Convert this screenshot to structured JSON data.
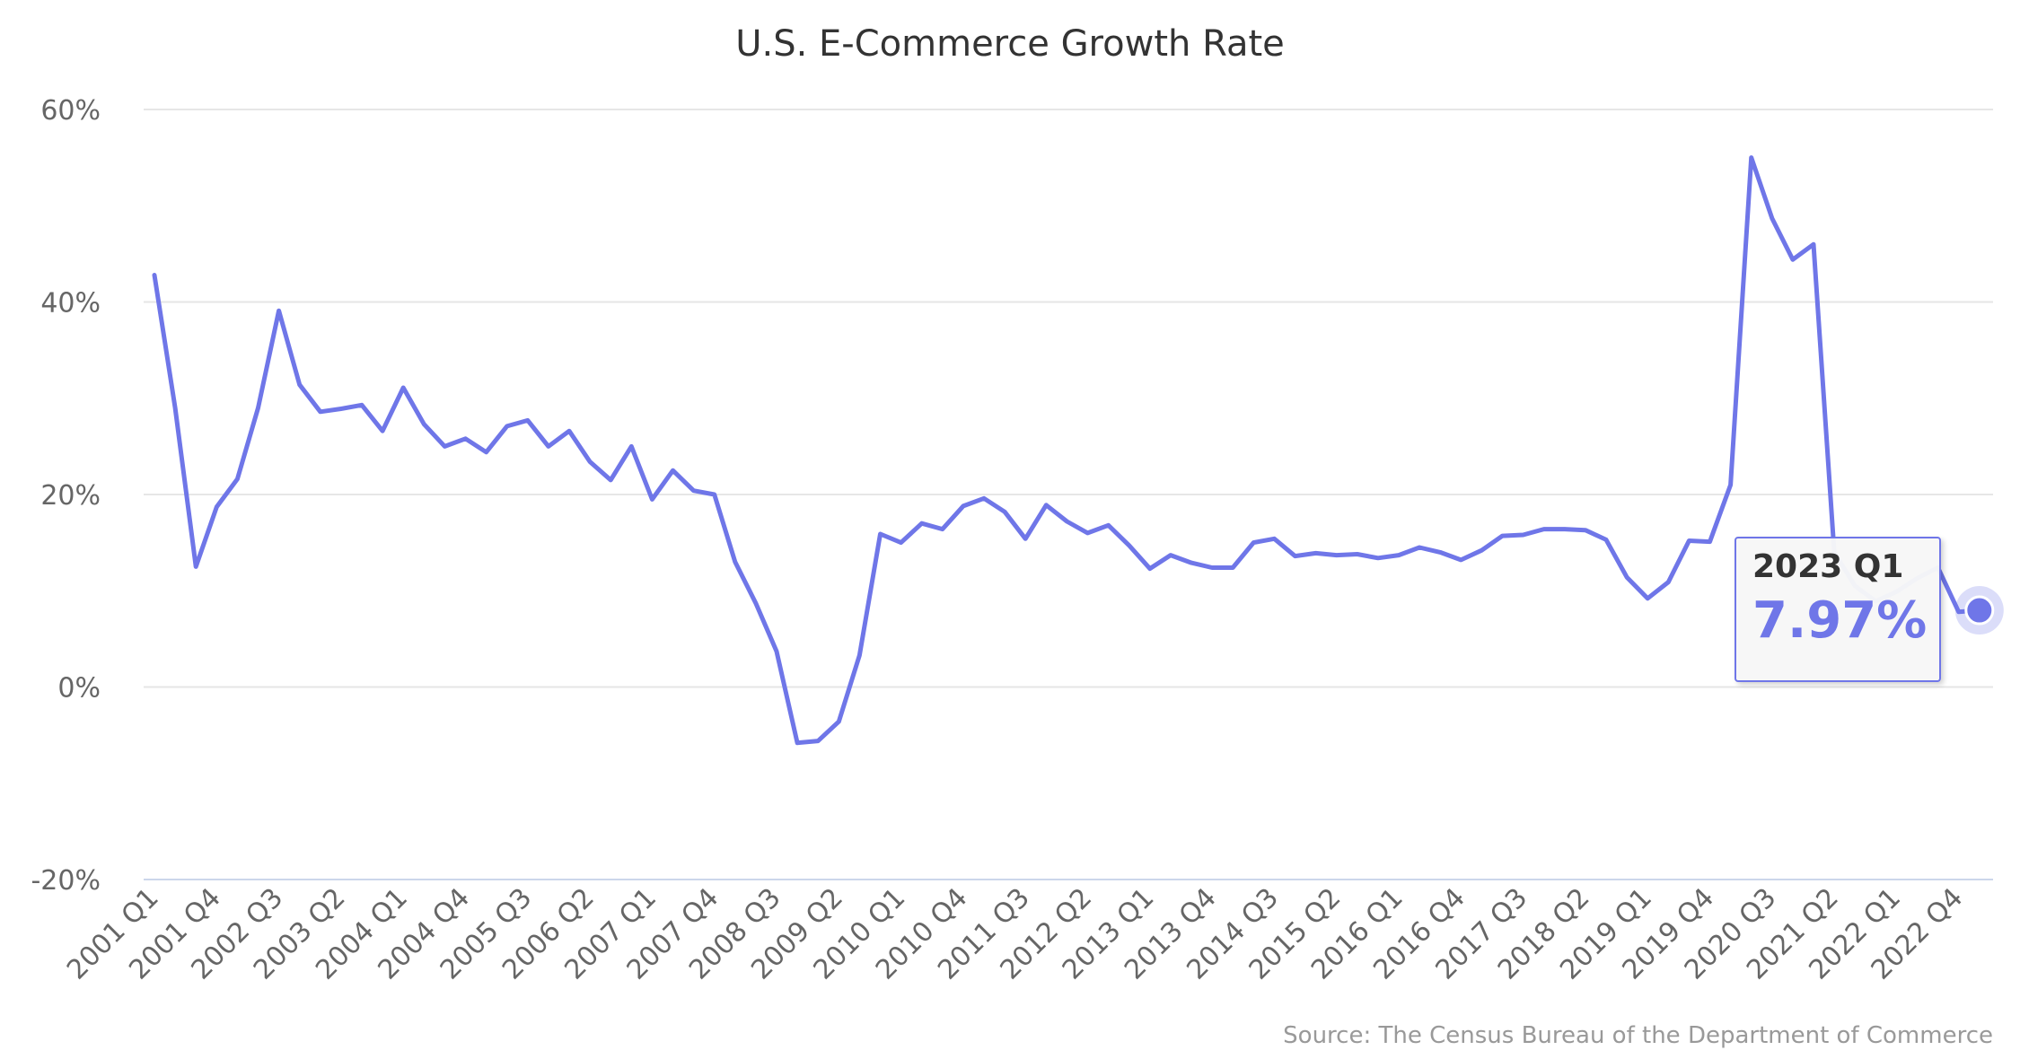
{
  "colors": {
    "series": "#6f76e8",
    "grid": "#e6e6e6",
    "axis_text": "#666666",
    "title": "#333333"
  },
  "chart_data": {
    "type": "line",
    "title": "U.S. E-Commerce Growth Rate",
    "xlabel": "",
    "ylabel": "",
    "ylim": [
      -20,
      60
    ],
    "y_ticks": [
      60,
      40,
      20,
      0,
      -20
    ],
    "y_tick_labels": [
      "60%",
      "40%",
      "20%",
      "0%",
      "-20%"
    ],
    "x_tick_labels": [
      "2001 Q1",
      "2001 Q4",
      "2002 Q3",
      "2003 Q2",
      "2004 Q1",
      "2004 Q4",
      "2005 Q3",
      "2006 Q2",
      "2007 Q1",
      "2007 Q4",
      "2008 Q3",
      "2009 Q2",
      "2010 Q1",
      "2010 Q4",
      "2011 Q3",
      "2012 Q2",
      "2013 Q1",
      "2013 Q4",
      "2014 Q3",
      "2015 Q2",
      "2016 Q1",
      "2016 Q4",
      "2017 Q3",
      "2018 Q2",
      "2019 Q1",
      "2019 Q4",
      "2020 Q3",
      "2021 Q2",
      "2022 Q1",
      "2022 Q4"
    ],
    "x_tick_every": 3,
    "start_year": 2001,
    "start_quarter": 1,
    "series": [
      {
        "name": "U.S. E-Commerce Growth Rate",
        "values": [
          42.8,
          29.0,
          12.5,
          18.7,
          21.6,
          29.0,
          39.1,
          31.4,
          28.6,
          28.9,
          29.3,
          26.6,
          31.1,
          27.3,
          25.0,
          25.8,
          24.4,
          27.1,
          27.7,
          25.0,
          26.6,
          23.4,
          21.5,
          25.0,
          19.5,
          22.5,
          20.4,
          20.0,
          13.0,
          8.7,
          3.7,
          -5.8,
          -5.6,
          -3.6,
          3.3,
          15.9,
          15.0,
          17.0,
          16.4,
          18.8,
          19.6,
          18.2,
          15.4,
          18.9,
          17.2,
          16.0,
          16.8,
          14.7,
          12.3,
          13.7,
          12.9,
          12.4,
          12.4,
          15.0,
          15.4,
          13.6,
          13.9,
          13.7,
          13.8,
          13.4,
          13.7,
          14.5,
          14.0,
          13.2,
          14.2,
          15.7,
          15.8,
          16.4,
          16.4,
          16.3,
          15.3,
          11.4,
          9.2,
          10.9,
          15.2,
          15.1,
          21.0,
          55.0,
          48.7,
          44.4,
          46.0,
          14.0,
          10.5,
          8.9,
          9.9,
          11.3,
          12.4,
          7.8,
          7.97
        ]
      }
    ],
    "highlight": {
      "label": "2023 Q1",
      "value": 7.97,
      "value_label": "7.97%"
    },
    "source": "Source: The Census Bureau of the Department of Commerce"
  }
}
